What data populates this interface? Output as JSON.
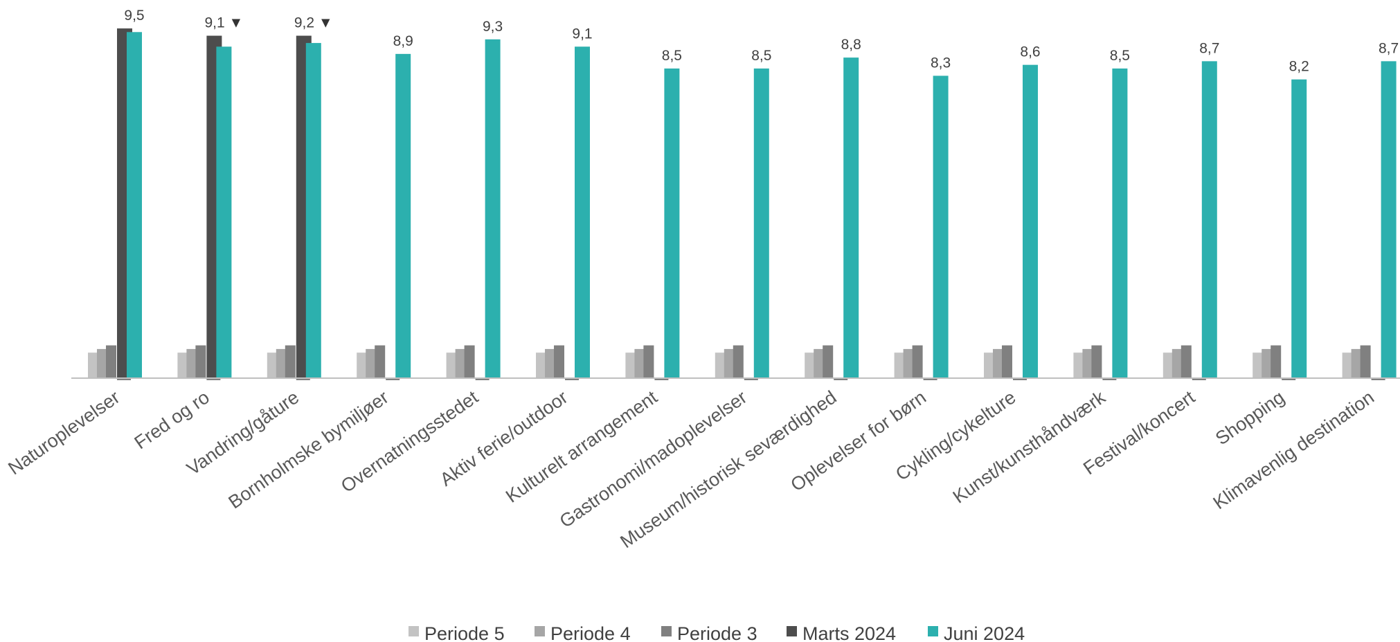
{
  "chart_data": {
    "type": "bar",
    "categories": [
      "Naturoplevelser",
      "Fred og ro",
      "Vandring/gåture",
      "Bornholmske bymiljøer",
      "Overnatningsstedet",
      "Aktiv ferie/outdoor",
      "Kulturelt arrangement",
      "Gastronomi/madoplevelser",
      "Museum/historisk seværdighed",
      "Oplevelser for børn",
      "Cykling/cykelture",
      "Kunst/kunsthåndværk",
      "Festival/koncert",
      "Shopping",
      "Klimavenlig destination"
    ],
    "series": [
      {
        "name": "Periode 5",
        "color": "#c3c3c3",
        "values": [
          0.7,
          0.7,
          0.7,
          0.7,
          0.7,
          0.7,
          0.7,
          0.7,
          0.7,
          0.7,
          0.7,
          0.7,
          0.7,
          0.7,
          0.7
        ]
      },
      {
        "name": "Periode 4",
        "color": "#a6a6a6",
        "values": [
          0.8,
          0.8,
          0.8,
          0.8,
          0.8,
          0.8,
          0.8,
          0.8,
          0.8,
          0.8,
          0.8,
          0.8,
          0.8,
          0.8,
          0.8
        ]
      },
      {
        "name": "Periode 3",
        "color": "#808080",
        "values": [
          0.9,
          0.9,
          0.9,
          0.9,
          0.9,
          0.9,
          0.9,
          0.9,
          0.9,
          0.9,
          0.9,
          0.9,
          0.9,
          0.9,
          0.9
        ]
      },
      {
        "name": "Marts 2024",
        "color": "#4d4d4d",
        "values": [
          9.6,
          9.4,
          9.4,
          null,
          null,
          null,
          null,
          null,
          null,
          null,
          null,
          null,
          null,
          null,
          null
        ]
      },
      {
        "name": "Juni 2024",
        "color": "#2cb0ae",
        "values": [
          9.5,
          9.1,
          9.2,
          8.9,
          9.3,
          9.1,
          8.5,
          8.5,
          8.8,
          8.3,
          8.6,
          8.5,
          8.7,
          8.2,
          8.7
        ]
      }
    ],
    "data_labels": [
      "9,5",
      "9,1",
      "9,2",
      "8,9",
      "9,3",
      "9,1",
      "8,5",
      "8,5",
      "8,8",
      "8,3",
      "8,6",
      "8,5",
      "8,7",
      "8,2",
      "8,7"
    ],
    "label_markers": [
      "",
      "▼",
      "▼",
      "",
      "",
      "",
      "",
      "",
      "",
      "",
      "",
      "",
      "",
      "",
      ""
    ],
    "ylim": [
      0,
      10
    ],
    "grid": false,
    "legend_position": "bottom"
  }
}
